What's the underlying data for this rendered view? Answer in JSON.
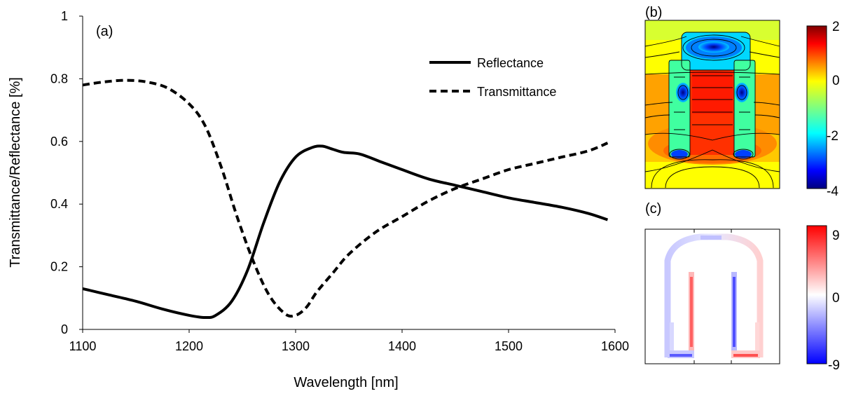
{
  "chart_data": [
    {
      "panel": "(a)",
      "type": "line",
      "xlabel": "Wavelength [nm]",
      "ylabel": "Transmittance/Reflectance [%]",
      "xlim": [
        1100,
        1600
      ],
      "ylim": [
        0,
        1
      ],
      "xticks": [
        1100,
        1200,
        1300,
        1400,
        1500,
        1600
      ],
      "yticks": [
        0,
        0.2,
        0.4,
        0.6,
        0.8,
        1
      ],
      "ytick_labels": [
        "0",
        "0.2",
        "0.4",
        "0.6",
        "0.8",
        "1"
      ],
      "legend_position": "top-right",
      "series": [
        {
          "name": "Reflectance",
          "style": "solid",
          "color": "#000000",
          "x": [
            1100,
            1125,
            1150,
            1175,
            1200,
            1215,
            1225,
            1240,
            1255,
            1270,
            1285,
            1300,
            1315,
            1325,
            1335,
            1345,
            1360,
            1380,
            1400,
            1425,
            1450,
            1475,
            1500,
            1525,
            1550,
            1575,
            1593
          ],
          "y": [
            0.13,
            0.11,
            0.09,
            0.065,
            0.045,
            0.038,
            0.045,
            0.09,
            0.19,
            0.34,
            0.47,
            0.55,
            0.58,
            0.585,
            0.575,
            0.565,
            0.56,
            0.535,
            0.51,
            0.48,
            0.46,
            0.44,
            0.42,
            0.405,
            0.39,
            0.37,
            0.35
          ]
        },
        {
          "name": "Transmittance",
          "style": "dashed",
          "color": "#000000",
          "x": [
            1100,
            1120,
            1140,
            1160,
            1180,
            1200,
            1215,
            1230,
            1245,
            1260,
            1275,
            1290,
            1300,
            1310,
            1320,
            1335,
            1350,
            1375,
            1400,
            1425,
            1450,
            1475,
            1500,
            1525,
            1550,
            1575,
            1593
          ],
          "y": [
            0.78,
            0.79,
            0.795,
            0.79,
            0.77,
            0.72,
            0.65,
            0.52,
            0.36,
            0.22,
            0.11,
            0.05,
            0.045,
            0.07,
            0.12,
            0.18,
            0.24,
            0.31,
            0.36,
            0.41,
            0.45,
            0.48,
            0.51,
            0.53,
            0.55,
            0.57,
            0.595
          ]
        }
      ]
    },
    {
      "panel": "(b)",
      "type": "heatmap",
      "colormap": "jet",
      "colorbar_ticks": [
        "2",
        "0",
        "-2",
        "-4"
      ],
      "range": [
        -4,
        2
      ],
      "contours": true
    },
    {
      "panel": "(c)",
      "type": "heatmap",
      "colormap": "blue-white-red",
      "colorbar_ticks": [
        "9",
        "0",
        "-9"
      ],
      "range": [
        -9,
        9
      ]
    }
  ]
}
